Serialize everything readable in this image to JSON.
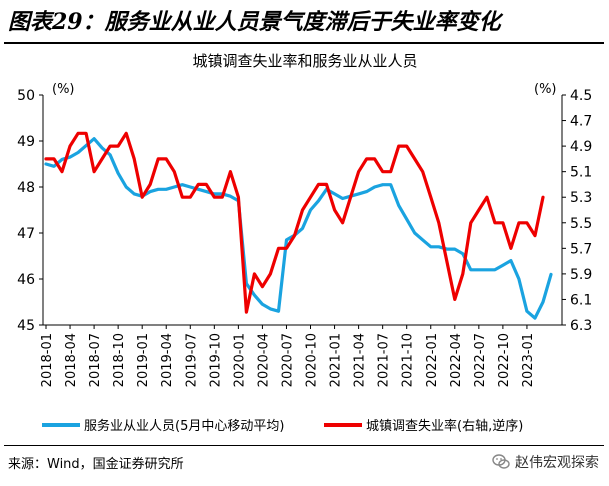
{
  "figure": {
    "title": "图表29：服务业从业人员景气度滞后于失业率变化",
    "source": "来源：Wind，国金证券研究所",
    "watermark": "赵伟宏观探索"
  },
  "chart_data": {
    "type": "line",
    "title": "城镇调查失业率和服务业从业人员",
    "left_axis": {
      "unit": "(%)",
      "range": [
        45,
        50
      ],
      "ticks": [
        "45",
        "46",
        "47",
        "48",
        "49",
        "50"
      ]
    },
    "right_axis": {
      "unit": "(%)",
      "range": [
        4.5,
        6.3
      ],
      "reversed": true,
      "ticks": [
        "4.5",
        "4.7",
        "4.9",
        "5.1",
        "5.3",
        "5.5",
        "5.7",
        "5.9",
        "6.1",
        "6.3"
      ]
    },
    "x_labels": [
      "2018-01",
      "2018-04",
      "2018-07",
      "2018-10",
      "2019-01",
      "2019-04",
      "2019-07",
      "2019-10",
      "2020-01",
      "2020-04",
      "2020-07",
      "2020-10",
      "2021-01",
      "2021-04",
      "2021-07",
      "2021-10",
      "2022-01",
      "2022-04",
      "2022-07",
      "2022-10",
      "2023-01"
    ],
    "x_start": "2018-01",
    "series": [
      {
        "name": "服务业从业人员(5月中心移动平均)",
        "axis": "left",
        "color": "#1aa3e0",
        "values": [
          48.5,
          48.45,
          48.6,
          48.65,
          48.75,
          48.9,
          49.05,
          48.85,
          48.7,
          48.3,
          48.0,
          47.85,
          47.8,
          47.9,
          47.95,
          47.95,
          48.0,
          48.05,
          48.0,
          47.95,
          47.9,
          47.85,
          47.85,
          47.8,
          47.7,
          45.9,
          45.65,
          45.45,
          45.35,
          45.3,
          46.85,
          46.95,
          47.1,
          47.5,
          47.7,
          47.95,
          47.85,
          47.75,
          47.8,
          47.85,
          47.9,
          48.0,
          48.05,
          48.05,
          47.6,
          47.3,
          47.0,
          46.85,
          46.7,
          46.7,
          46.65,
          46.65,
          46.55,
          46.2,
          46.2,
          46.2,
          46.2,
          46.3,
          46.4,
          46.0,
          45.3,
          45.15,
          45.5,
          46.1
        ],
        "start_index": 0
      },
      {
        "name": "城镇调查失业率(右轴,逆序)",
        "axis": "right",
        "color": "#ee0000",
        "values": [
          5.0,
          5.0,
          5.1,
          4.9,
          4.8,
          4.8,
          5.1,
          5.0,
          4.9,
          4.9,
          4.8,
          5.0,
          5.3,
          5.2,
          5.0,
          5.0,
          5.1,
          5.3,
          5.3,
          5.2,
          5.2,
          5.3,
          5.3,
          5.1,
          5.3,
          6.2,
          5.9,
          6.0,
          5.9,
          5.7,
          5.7,
          5.6,
          5.4,
          5.3,
          5.2,
          5.2,
          5.4,
          5.5,
          5.3,
          5.1,
          5.0,
          5.0,
          5.1,
          5.1,
          4.9,
          4.9,
          5.0,
          5.1,
          5.3,
          5.5,
          5.8,
          6.1,
          5.9,
          5.5,
          5.4,
          5.3,
          5.5,
          5.5,
          5.7,
          5.5,
          5.5,
          5.6,
          5.3
        ],
        "start_index": 0
      }
    ],
    "grid": false,
    "legend": "bottom"
  }
}
